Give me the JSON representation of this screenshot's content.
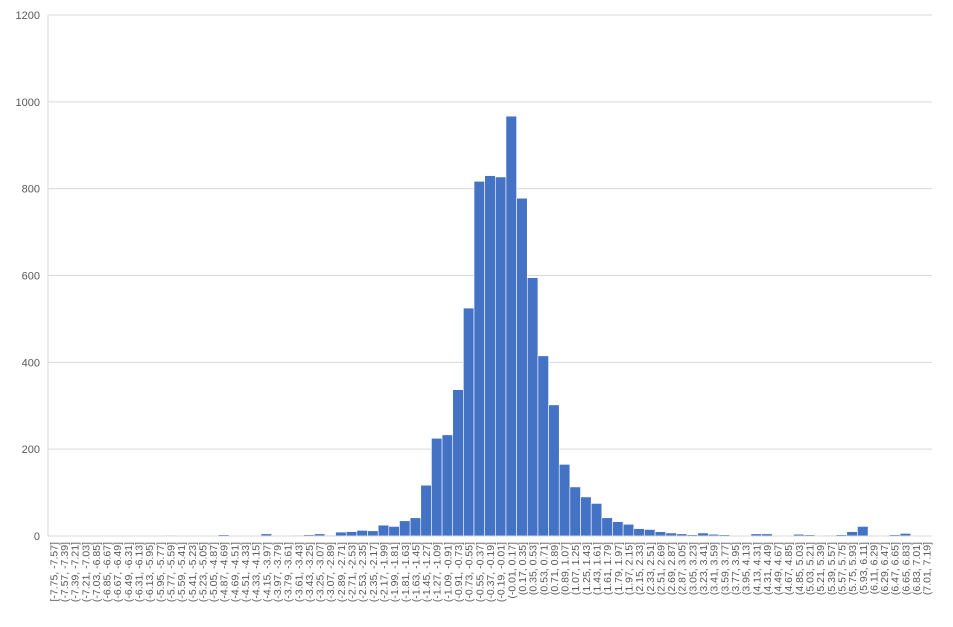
{
  "chart_data": {
    "type": "bar",
    "categories": [
      "[-7.75, -7.57]",
      "(-7.57, -7.39]",
      "(-7.39, -7.21]",
      "(-7.21, -7.03]",
      "(-7.03, -6.85]",
      "(-6.85, -6.67]",
      "(-6.67, -6.49]",
      "(-6.49, -6.31]",
      "(-6.31, -6.13]",
      "(-6.13, -5.95]",
      "(-5.95, -5.77]",
      "(-5.77, -5.59]",
      "(-5.59, -5.41]",
      "(-5.41, -5.23]",
      "(-5.23, -5.05]",
      "(-5.05, -4.87]",
      "(-4.87, -4.69]",
      "(-4.69, -4.51]",
      "(-4.51, -4.33]",
      "(-4.33, -4.15]",
      "(-4.15, -3.97]",
      "(-3.97, -3.79]",
      "(-3.79, -3.61]",
      "(-3.61, -3.43]",
      "(-3.43, -3.25]",
      "(-3.25, -3.07]",
      "(-3.07, -2.89]",
      "(-2.89, -2.71]",
      "(-2.71, -2.53]",
      "(-2.53, -2.35]",
      "(-2.35, -2.17]",
      "(-2.17, -1.99]",
      "(-1.99, -1.81]",
      "(-1.81, -1.63]",
      "(-1.63, -1.45]",
      "(-1.45, -1.27]",
      "(-1.27, -1.09]",
      "(-1.09, -0.91]",
      "(-0.91, -0.73]",
      "(-0.73, -0.55]",
      "(-0.55, -0.37]",
      "(-0.37, -0.19]",
      "(-0.19, -0.01]",
      "(-0.01, 0.17]",
      "(0.17, 0.35]",
      "(0.35, 0.53]",
      "(0.53, 0.71]",
      "(0.71, 0.89]",
      "(0.89, 1.07]",
      "(1.07, 1.25]",
      "(1.25, 1.43]",
      "(1.43, 1.61]",
      "(1.61, 1.79]",
      "(1.79, 1.97]",
      "(1.97, 2.15]",
      "(2.15, 2.33]",
      "(2.33, 2.51]",
      "(2.51, 2.69]",
      "(2.69, 2.87]",
      "(2.87, 3.05]",
      "(3.05, 3.23]",
      "(3.23, 3.41]",
      "(3.41, 3.59]",
      "(3.59, 3.77]",
      "(3.77, 3.95]",
      "(3.95, 4.13]",
      "(4.13, 4.31]",
      "(4.31, 4.49]",
      "(4.49, 4.67]",
      "(4.67, 4.85]",
      "(4.85, 5.03]",
      "(5.03, 5.21]",
      "(5.21, 5.39]",
      "(5.39, 5.57]",
      "(5.57, 5.75]",
      "(5.75, 5.93]",
      "(5.93, 6.11]",
      "(6.11, 6.29]",
      "(6.29, 6.47]",
      "(6.47, 6.65]",
      "(6.65, 6.83]",
      "(6.83, 7.01]",
      "(7.01, 7.19]"
    ],
    "values": [
      0,
      0,
      0,
      0,
      0,
      0,
      0,
      0,
      0,
      0,
      0,
      2,
      0,
      0,
      1,
      0,
      3,
      0,
      0,
      1,
      5,
      0,
      1,
      2,
      3,
      5,
      2,
      9,
      10,
      13,
      12,
      25,
      22,
      35,
      42,
      117,
      225,
      233,
      337,
      525,
      817,
      830,
      827,
      967,
      778,
      595,
      415,
      302,
      165,
      113,
      90,
      75,
      42,
      33,
      27,
      17,
      15,
      10,
      7,
      5,
      3,
      7,
      4,
      3,
      1,
      1,
      5,
      5,
      1,
      1,
      4,
      3,
      1,
      2,
      3,
      10,
      22,
      1,
      0,
      3,
      6,
      0,
      0
    ],
    "color": "#4472c4",
    "ylim": [
      0,
      1200
    ],
    "yticks": [
      0,
      200,
      400,
      600,
      800,
      1000,
      1200
    ],
    "grid": true
  }
}
